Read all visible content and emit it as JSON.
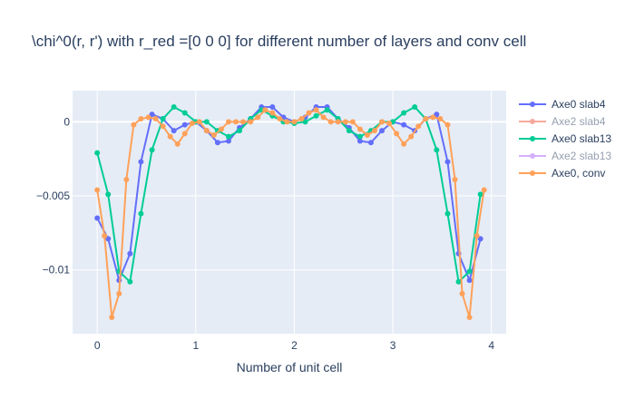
{
  "chart_data": {
    "type": "line",
    "title": "\\chi^0(r, r') with r_red =[0 0 0] for different number of layers and conv cell",
    "xlabel": "Number of unit cell",
    "ylabel": "",
    "xlim": [
      -0.25,
      4.15
    ],
    "ylim": [
      -0.0143,
      0.0021
    ],
    "xticks": [
      0,
      1,
      2,
      3,
      4
    ],
    "xtick_labels": [
      "0",
      "1",
      "2",
      "3",
      "4"
    ],
    "yticks": [
      0,
      -0.005,
      -0.01
    ],
    "ytick_labels": [
      "0",
      "−0.005",
      "−0.01"
    ],
    "grid": true,
    "plot_bg": "#e5ecf6",
    "legend_position": "right",
    "series": [
      {
        "name": "Axe0 slab4",
        "color": "#636efa",
        "visible": true,
        "x": [
          0,
          0.111,
          0.222,
          0.333,
          0.444,
          0.556,
          0.667,
          0.778,
          0.889,
          1.0,
          1.111,
          1.222,
          1.333,
          1.444,
          1.556,
          1.667,
          1.778,
          1.889,
          2.0,
          2.111,
          2.222,
          2.333,
          2.444,
          2.556,
          2.667,
          2.778,
          2.889,
          3.0,
          3.111,
          3.222,
          3.333,
          3.444,
          3.556,
          3.667,
          3.778,
          3.889
        ],
        "y": [
          -0.0065,
          -0.0079,
          -0.0107,
          -0.0089,
          -0.0027,
          0.0005,
          0.0002,
          -0.0006,
          -0.0002,
          0.0,
          -0.0006,
          -0.0014,
          -0.0013,
          -0.0004,
          0.0002,
          0.001,
          0.001,
          0.0003,
          0.0,
          0.0003,
          0.001,
          0.001,
          0.0002,
          -0.0004,
          -0.0013,
          -0.0014,
          -0.0006,
          0.0,
          -0.0002,
          -0.0006,
          0.0002,
          0.0005,
          -0.0027,
          -0.0089,
          -0.0107,
          -0.0079
        ]
      },
      {
        "name": "Axe2 slab4",
        "color": "#ef553b",
        "visible": false,
        "x": [],
        "y": []
      },
      {
        "name": "Axe0 slab13",
        "color": "#00cc96",
        "visible": true,
        "x": [
          0,
          0.111,
          0.222,
          0.333,
          0.444,
          0.556,
          0.667,
          0.778,
          0.889,
          1.0,
          1.111,
          1.222,
          1.333,
          1.444,
          1.556,
          1.667,
          1.778,
          1.889,
          2.0,
          2.111,
          2.222,
          2.333,
          2.444,
          2.556,
          2.667,
          2.778,
          2.889,
          3.0,
          3.111,
          3.222,
          3.333,
          3.444,
          3.556,
          3.667,
          3.778,
          3.889
        ],
        "y": [
          -0.0021,
          -0.0049,
          -0.0101,
          -0.0108,
          -0.0062,
          -0.0019,
          0.0002,
          0.001,
          0.0006,
          0.0,
          0.0,
          -0.0006,
          -0.001,
          -0.0006,
          0.0002,
          0.0008,
          0.0004,
          0.0,
          -0.0001,
          0.0,
          0.0004,
          0.0008,
          0.0002,
          -0.0006,
          -0.001,
          -0.0006,
          0.0,
          0.0,
          0.0006,
          0.001,
          0.0002,
          -0.0019,
          -0.0062,
          -0.0108,
          -0.0101,
          -0.0049
        ]
      },
      {
        "name": "Axe2 slab13",
        "color": "#ab63fa",
        "visible": false,
        "x": [],
        "y": []
      },
      {
        "name": "Axe0, conv",
        "color": "#ffa15a",
        "visible": true,
        "x": [
          0,
          0.074,
          0.148,
          0.222,
          0.296,
          0.37,
          0.444,
          0.519,
          0.593,
          0.667,
          0.741,
          0.815,
          0.889,
          0.963,
          1.037,
          1.111,
          1.185,
          1.259,
          1.333,
          1.407,
          1.481,
          1.556,
          1.63,
          1.704,
          1.778,
          1.852,
          1.926,
          2.0,
          2.074,
          2.148,
          2.222,
          2.296,
          2.37,
          2.444,
          2.519,
          2.593,
          2.667,
          2.741,
          2.815,
          2.889,
          2.963,
          3.037,
          3.111,
          3.185,
          3.259,
          3.333,
          3.407,
          3.481,
          3.556,
          3.63,
          3.704,
          3.778,
          3.852,
          3.926
        ],
        "y": [
          -0.0046,
          -0.0077,
          -0.0132,
          -0.0116,
          -0.0039,
          -0.0002,
          0.0002,
          0.0003,
          0.0002,
          -0.0003,
          -0.001,
          -0.0015,
          -0.0008,
          -0.0001,
          0.0,
          -0.0006,
          -0.0009,
          -0.0005,
          0.0,
          0.0,
          0.0,
          0.0,
          0.0003,
          0.0008,
          0.0006,
          0.0002,
          0.0,
          0.0,
          0.0002,
          0.0006,
          0.0008,
          0.0003,
          0.0,
          0.0,
          0.0,
          0.0,
          -0.0005,
          -0.0009,
          -0.0006,
          0.0,
          -0.0001,
          -0.0008,
          -0.0015,
          -0.001,
          -0.0003,
          0.0002,
          0.0003,
          0.0002,
          -0.0002,
          -0.0039,
          -0.0116,
          -0.0132,
          -0.0077,
          -0.0046
        ]
      }
    ]
  }
}
